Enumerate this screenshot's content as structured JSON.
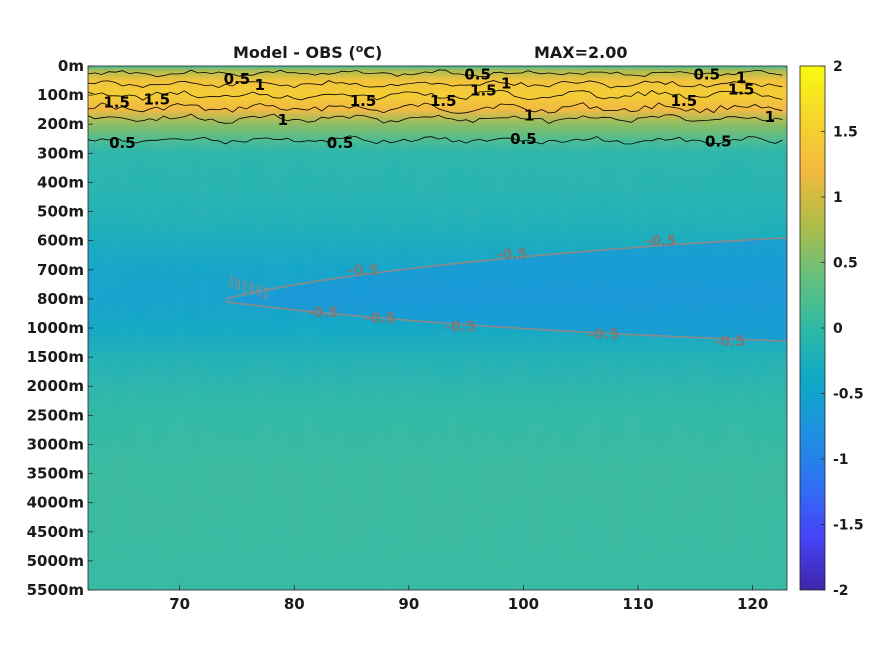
{
  "chart_data": {
    "type": "heatmap",
    "title": "Model - OBS (",
    "title_unit_sup": "o",
    "title_unit_tail": "C)",
    "max_label": "MAX=2.00",
    "y_ticks": [
      "0m",
      "100m",
      "200m",
      "300m",
      "400m",
      "500m",
      "600m",
      "700m",
      "800m",
      "1000m",
      "1500m",
      "2000m",
      "2500m",
      "3000m",
      "3500m",
      "4000m",
      "4500m",
      "5000m",
      "5500m"
    ],
    "x_range": [
      62,
      123
    ],
    "x_ticks": [
      {
        "value": 70,
        "label": "70"
      },
      {
        "value": 80,
        "label": "80"
      },
      {
        "value": 90,
        "label": "90"
      },
      {
        "value": 100,
        "label": "100"
      },
      {
        "value": 110,
        "label": "110"
      },
      {
        "value": 120,
        "label": "120"
      }
    ],
    "colorbar": {
      "range": [
        -2,
        2
      ],
      "ticks": [
        {
          "value": 2,
          "label": "2"
        },
        {
          "value": 1.5,
          "label": "1.5"
        },
        {
          "value": 1,
          "label": "1"
        },
        {
          "value": 0.5,
          "label": "0.5"
        },
        {
          "value": 0,
          "label": "0"
        },
        {
          "value": -0.5,
          "label": "-0.5"
        },
        {
          "value": -1,
          "label": "-1"
        },
        {
          "value": -1.5,
          "label": "-1.5"
        },
        {
          "value": -2,
          "label": "-2"
        }
      ],
      "colormap": [
        "#3e26a8",
        "#4743f8",
        "#2f70f3",
        "#1d91e1",
        "#0fa8c7",
        "#2fbaa6",
        "#66c07a",
        "#b2bc48",
        "#f4b93f",
        "#f5d52c",
        "#f9fb0e"
      ]
    },
    "profile_by_level": [
      {
        "level": 0,
        "value": 0.05
      },
      {
        "level": 0.15,
        "value": 0.75
      },
      {
        "level": 0.5,
        "value": 1.35
      },
      {
        "level": 1,
        "value": 1.5
      },
      {
        "level": 1.5,
        "value": 1.2
      },
      {
        "level": 2,
        "value": 0.6
      },
      {
        "level": 2.6,
        "value": 0.15
      },
      {
        "level": 3,
        "value": -0.08
      },
      {
        "level": 4,
        "value": -0.12
      },
      {
        "level": 5,
        "value": -0.18
      },
      {
        "level": 6,
        "value": -0.3
      },
      {
        "level": 7,
        "value": -0.45
      },
      {
        "level": 8,
        "value": -0.5
      },
      {
        "level": 9,
        "value": -0.4
      },
      {
        "level": 10,
        "value": -0.2
      },
      {
        "level": 11,
        "value": -0.08
      },
      {
        "level": 12,
        "value": 0.0
      },
      {
        "level": 14,
        "value": 0.06
      },
      {
        "level": 16,
        "value": 0.05
      },
      {
        "level": 18,
        "value": 0.04
      }
    ],
    "contour_labels_positive": [
      {
        "x": 75,
        "level": 0.45,
        "label": "0.5"
      },
      {
        "x": 77,
        "level": 0.65,
        "label": "1"
      },
      {
        "x": 64.5,
        "level": 1.25,
        "label": "1.5"
      },
      {
        "x": 68,
        "level": 1.15,
        "label": "1.5"
      },
      {
        "x": 79,
        "level": 1.85,
        "label": "1"
      },
      {
        "x": 65,
        "level": 2.65,
        "label": "0.5"
      },
      {
        "x": 84,
        "level": 2.65,
        "label": "0.5"
      },
      {
        "x": 86,
        "level": 1.2,
        "label": "1.5"
      },
      {
        "x": 93,
        "level": 1.2,
        "label": "1.5"
      },
      {
        "x": 96,
        "level": 0.3,
        "label": "0.5"
      },
      {
        "x": 98.5,
        "level": 0.6,
        "label": "1"
      },
      {
        "x": 96.5,
        "level": 0.85,
        "label": "1.5"
      },
      {
        "x": 100.5,
        "level": 1.7,
        "label": "1"
      },
      {
        "x": 100,
        "level": 2.5,
        "label": "0.5"
      },
      {
        "x": 114,
        "level": 1.2,
        "label": "1.5"
      },
      {
        "x": 116,
        "level": 0.3,
        "label": "0.5"
      },
      {
        "x": 119,
        "level": 0.4,
        "label": "1"
      },
      {
        "x": 119,
        "level": 0.8,
        "label": "1.5"
      },
      {
        "x": 121.5,
        "level": 1.75,
        "label": "1"
      },
      {
        "x": 117,
        "level": 2.6,
        "label": "0.5"
      }
    ],
    "contour_labels_negative": [
      {
        "x": 86,
        "level": 7,
        "label": "-0.5"
      },
      {
        "x": 99,
        "level": 6.45,
        "label": "-0.5"
      },
      {
        "x": 112,
        "level": 6.0,
        "label": "-0.5"
      },
      {
        "x": 82.5,
        "level": 8.45,
        "label": "-0.5"
      },
      {
        "x": 87.5,
        "level": 8.65,
        "label": "-0.5"
      },
      {
        "x": 94.5,
        "level": 8.95,
        "label": "-0.5"
      },
      {
        "x": 107,
        "level": 9.2,
        "label": "-0.5"
      },
      {
        "x": 118,
        "level": 9.45,
        "label": "-0.5"
      }
    ]
  }
}
